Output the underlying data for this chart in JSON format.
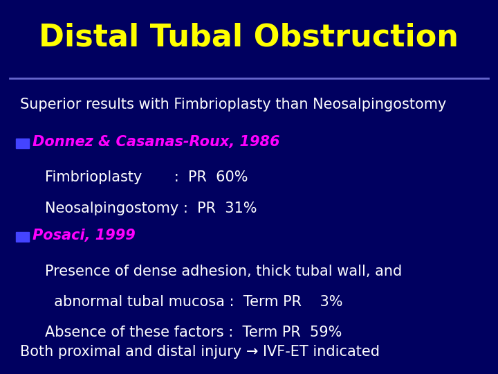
{
  "title": "Distal Tubal Obstruction",
  "title_color": "#FFFF00",
  "title_fontsize": 32,
  "background_color": "#000060",
  "separator_color": "#6666CC",
  "subtitle": "Superior results with Fimbrioplasty than Neosalpingostomy",
  "subtitle_color": "#FFFFFF",
  "subtitle_fontsize": 15,
  "bullet_color": "#4444FF",
  "bullet1_label": "Donnez & Casanas-Roux, 1986",
  "bullet1_color": "#FF00FF",
  "bullet1_fontsize": 15,
  "bullet1_lines": [
    "Fimbrioplasty       :  PR  60%",
    "Neosalpingostomy :  PR  31%"
  ],
  "bullet1_lines_color": "#FFFFFF",
  "bullet1_lines_fontsize": 15,
  "bullet2_label": "Posaci, 1999",
  "bullet2_color": "#FF00FF",
  "bullet2_fontsize": 15,
  "bullet2_lines": [
    "Presence of dense adhesion, thick tubal wall, and",
    "  abnormal tubal mucosa :  Term PR    3%",
    "Absence of these factors :  Term PR  59%"
  ],
  "bullet2_lines_color": "#FFFFFF",
  "bullet2_lines_fontsize": 15,
  "footer_text1": "Both proximal and distal injury ",
  "footer_arrow": "→",
  "footer_text2": " IVF-ET indicated",
  "footer_color": "#FFFFFF",
  "footer_fontsize": 15
}
